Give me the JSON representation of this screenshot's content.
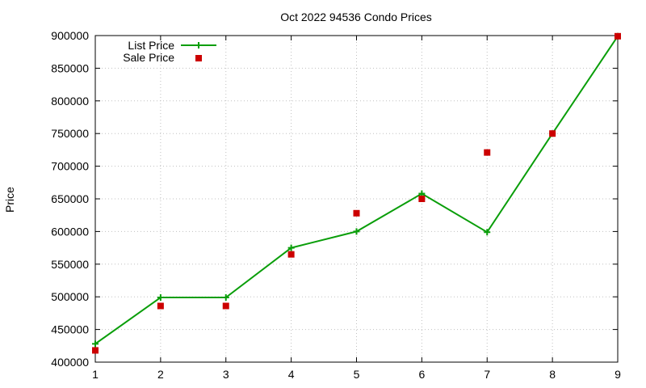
{
  "chart_data": {
    "type": "line",
    "title": "Oct 2022 94536 Condo Prices",
    "xlabel": "",
    "ylabel": "Price",
    "xlim": [
      1,
      9
    ],
    "ylim": [
      400000,
      900000
    ],
    "x_ticks": [
      "1",
      "2",
      "3",
      "4",
      "5",
      "6",
      "7",
      "8",
      "9"
    ],
    "y_ticks": [
      "400000",
      "450000",
      "500000",
      "550000",
      "600000",
      "650000",
      "700000",
      "750000",
      "800000",
      "850000",
      "900000"
    ],
    "grid": true,
    "legend_position": "top-left",
    "series": [
      {
        "name": "List Price",
        "style": "line-with-plus-markers",
        "color": "#0a9e0a",
        "x": [
          1,
          2,
          3,
          4,
          5,
          6,
          7,
          8,
          9
        ],
        "y": [
          428000,
          499000,
          499000,
          575000,
          600000,
          658000,
          599000,
          750000,
          899000
        ]
      },
      {
        "name": "Sale Price",
        "style": "square-markers",
        "color": "#cc0000",
        "x": [
          1,
          2,
          3,
          4,
          5,
          6,
          7,
          8,
          9
        ],
        "y": [
          418000,
          486000,
          486000,
          565000,
          628000,
          650000,
          721000,
          750000,
          899000
        ]
      }
    ]
  }
}
